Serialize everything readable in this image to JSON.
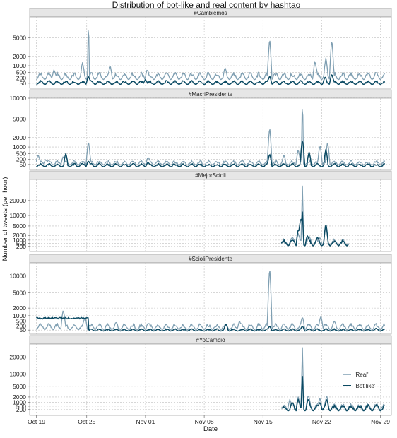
{
  "colors": {
    "real": "#7f9fb2",
    "bot_like": "#0b4a63"
  },
  "chart_data": {
    "type": "line",
    "title": "Distribution of bot-like and real content by hashtag",
    "xlabel": "Date",
    "ylabel": "Number of tweets (per hour)",
    "grid": true,
    "legend_position": "inside-right",
    "y_scale": "sqrt",
    "x_ticks": [
      {
        "label": "Oct 19",
        "day": 0
      },
      {
        "label": "Oct 25",
        "day": 6
      },
      {
        "label": "Nov 01",
        "day": 13
      },
      {
        "label": "Nov 08",
        "day": 20
      },
      {
        "label": "Nov 15",
        "day": 27
      },
      {
        "label": "Nov 22",
        "day": 34
      },
      {
        "label": "Nov 29",
        "day": 41
      }
    ],
    "x_range": [
      -0.8,
      42.3
    ],
    "legend": [
      {
        "label": "'Real'",
        "key": "real"
      },
      {
        "label": "'Bot like'",
        "key": "bot_like"
      }
    ],
    "panels": [
      {
        "label": "#Cambiemos",
        "ylim": [
          0,
          10000
        ],
        "yticks": [
          50,
          200,
          500,
          1000,
          2000,
          5000
        ],
        "series": [
          {
            "key": "real",
            "start": 0,
            "end": 41.5,
            "base": 150,
            "var": 250,
            "period": 1,
            "spikes": [
              [
                2.1,
                700
              ],
              [
                5.5,
                1300
              ],
              [
                8.8,
                1000
              ],
              [
                13.2,
                700
              ],
              [
                22.5,
                800
              ],
              [
                27.8,
                5000
              ],
              [
                33.2,
                1500
              ],
              [
                34.5,
                1800
              ],
              [
                35.2,
                4800
              ]
            ],
            "big_spikes": [
              [
                6.2,
                9000
              ]
            ]
          },
          {
            "key": "bot_like",
            "start": 0,
            "end": 41.5,
            "base": 30,
            "var": 60,
            "period": 1,
            "spikes": [
              [
                6.2,
                300
              ],
              [
                27.8,
                300
              ],
              [
                35.2,
                400
              ],
              [
                13,
                150
              ],
              [
                34.4,
                250
              ]
            ],
            "big_spikes": []
          }
        ]
      },
      {
        "label": "#MacriPresidente",
        "ylim": [
          0,
          10000
        ],
        "yticks": [
          50,
          200,
          500,
          1000,
          2000,
          5000,
          10000
        ],
        "series": [
          {
            "key": "real",
            "start": 0,
            "end": 41.5,
            "base": 40,
            "var": 90,
            "period": 1,
            "spikes": [
              [
                0.2,
                450
              ],
              [
                1.1,
                200
              ],
              [
                3.2,
                350
              ],
              [
                6.2,
                1600
              ],
              [
                13.3,
                300
              ],
              [
                27.8,
                3600
              ],
              [
                29.5,
                400
              ],
              [
                31.2,
                800
              ],
              [
                33.8,
                1200
              ],
              [
                34.7,
                1500
              ]
            ],
            "big_spikes": [
              [
                31.7,
                9800
              ]
            ]
          },
          {
            "key": "bot_like",
            "start": 0,
            "end": 41.5,
            "base": 15,
            "var": 40,
            "period": 1,
            "spikes": [
              [
                3.5,
                500
              ],
              [
                6.2,
                150
              ],
              [
                13.3,
                100
              ],
              [
                27.8,
                500
              ],
              [
                31.7,
                1800
              ],
              [
                32.5,
                600
              ],
              [
                34.5,
                800
              ]
            ],
            "big_spikes": []
          }
        ]
      },
      {
        "label": "#MejorScioli",
        "ylim": [
          0,
          40000
        ],
        "yticks": [
          200,
          500,
          1000,
          2000,
          5000,
          10000,
          20000
        ],
        "series": [
          {
            "key": "real",
            "start": 29.2,
            "end": 37.2,
            "base": 300,
            "var": 700,
            "period": 1,
            "spikes": [
              [
                30.5,
                1600
              ],
              [
                31.2,
                2500
              ],
              [
                32.5,
                1800
              ],
              [
                33.8,
                1500
              ],
              [
                34.5,
                5000
              ]
            ],
            "big_spikes": [
              [
                31.7,
                33000
              ]
            ]
          },
          {
            "key": "bot_like",
            "start": 29.2,
            "end": 37.2,
            "base": 250,
            "var": 600,
            "period": 1,
            "spikes": [
              [
                30.5,
                1000
              ],
              [
                31.2,
                3500
              ],
              [
                31.5,
                9000
              ],
              [
                32.3,
                2000
              ],
              [
                33.5,
                1500
              ],
              [
                34.5,
                6000
              ]
            ],
            "big_spikes": [
              [
                31.7,
                12000
              ]
            ]
          }
        ]
      },
      {
        "label": "#ScioliPresidente",
        "ylim": [
          0,
          15000
        ],
        "yticks": [
          50,
          200,
          500,
          1000,
          2000,
          5000,
          10000
        ],
        "series": [
          {
            "key": "real",
            "start": 0,
            "end": 41.5,
            "base": 60,
            "var": 200,
            "period": 1,
            "spikes": [
              [
                3.2,
                1800
              ],
              [
                5.8,
                900
              ],
              [
                9.5,
                400
              ],
              [
                13.3,
                350
              ],
              [
                24.2,
                500
              ],
              [
                27.8,
                13500
              ],
              [
                31.7,
                900
              ],
              [
                33.9,
                1000
              ],
              [
                35.5,
                500
              ]
            ],
            "big_spikes": []
          },
          {
            "key": "bot_like",
            "start": 0,
            "end": 41.5,
            "base": 30,
            "var": 40,
            "period": 1,
            "plateau": [
              0,
              6.2,
              800
            ],
            "spikes": [
              [
                22.6,
                300
              ],
              [
                27.8,
                200
              ],
              [
                31.7,
                200
              ],
              [
                40.5,
                100
              ]
            ],
            "big_spikes": []
          }
        ]
      },
      {
        "label": "#YoCambio",
        "ylim": [
          0,
          30000
        ],
        "yticks": [
          200,
          500,
          1000,
          2000,
          5000,
          10000,
          20000
        ],
        "series": [
          {
            "key": "real",
            "start": 29.2,
            "end": 41.5,
            "base": 150,
            "var": 500,
            "period": 1,
            "spikes": [
              [
                30.2,
                1500
              ],
              [
                31.2,
                2000
              ],
              [
                32.4,
                2500
              ],
              [
                33.8,
                1800
              ],
              [
                34.6,
                2200
              ],
              [
                38.7,
                350
              ],
              [
                39.9,
                250
              ],
              [
                41.2,
                400
              ]
            ],
            "big_spikes": [
              [
                31.7,
                27000
              ]
            ]
          },
          {
            "key": "bot_like",
            "start": 29.2,
            "end": 41.5,
            "base": 120,
            "var": 400,
            "period": 1,
            "spikes": [
              [
                30.5,
                1000
              ],
              [
                31.2,
                1500
              ],
              [
                32.4,
                1600
              ],
              [
                33.8,
                1000
              ],
              [
                34.6,
                1500
              ]
            ],
            "big_spikes": [
              [
                31.7,
                9000
              ]
            ]
          }
        ]
      }
    ]
  }
}
